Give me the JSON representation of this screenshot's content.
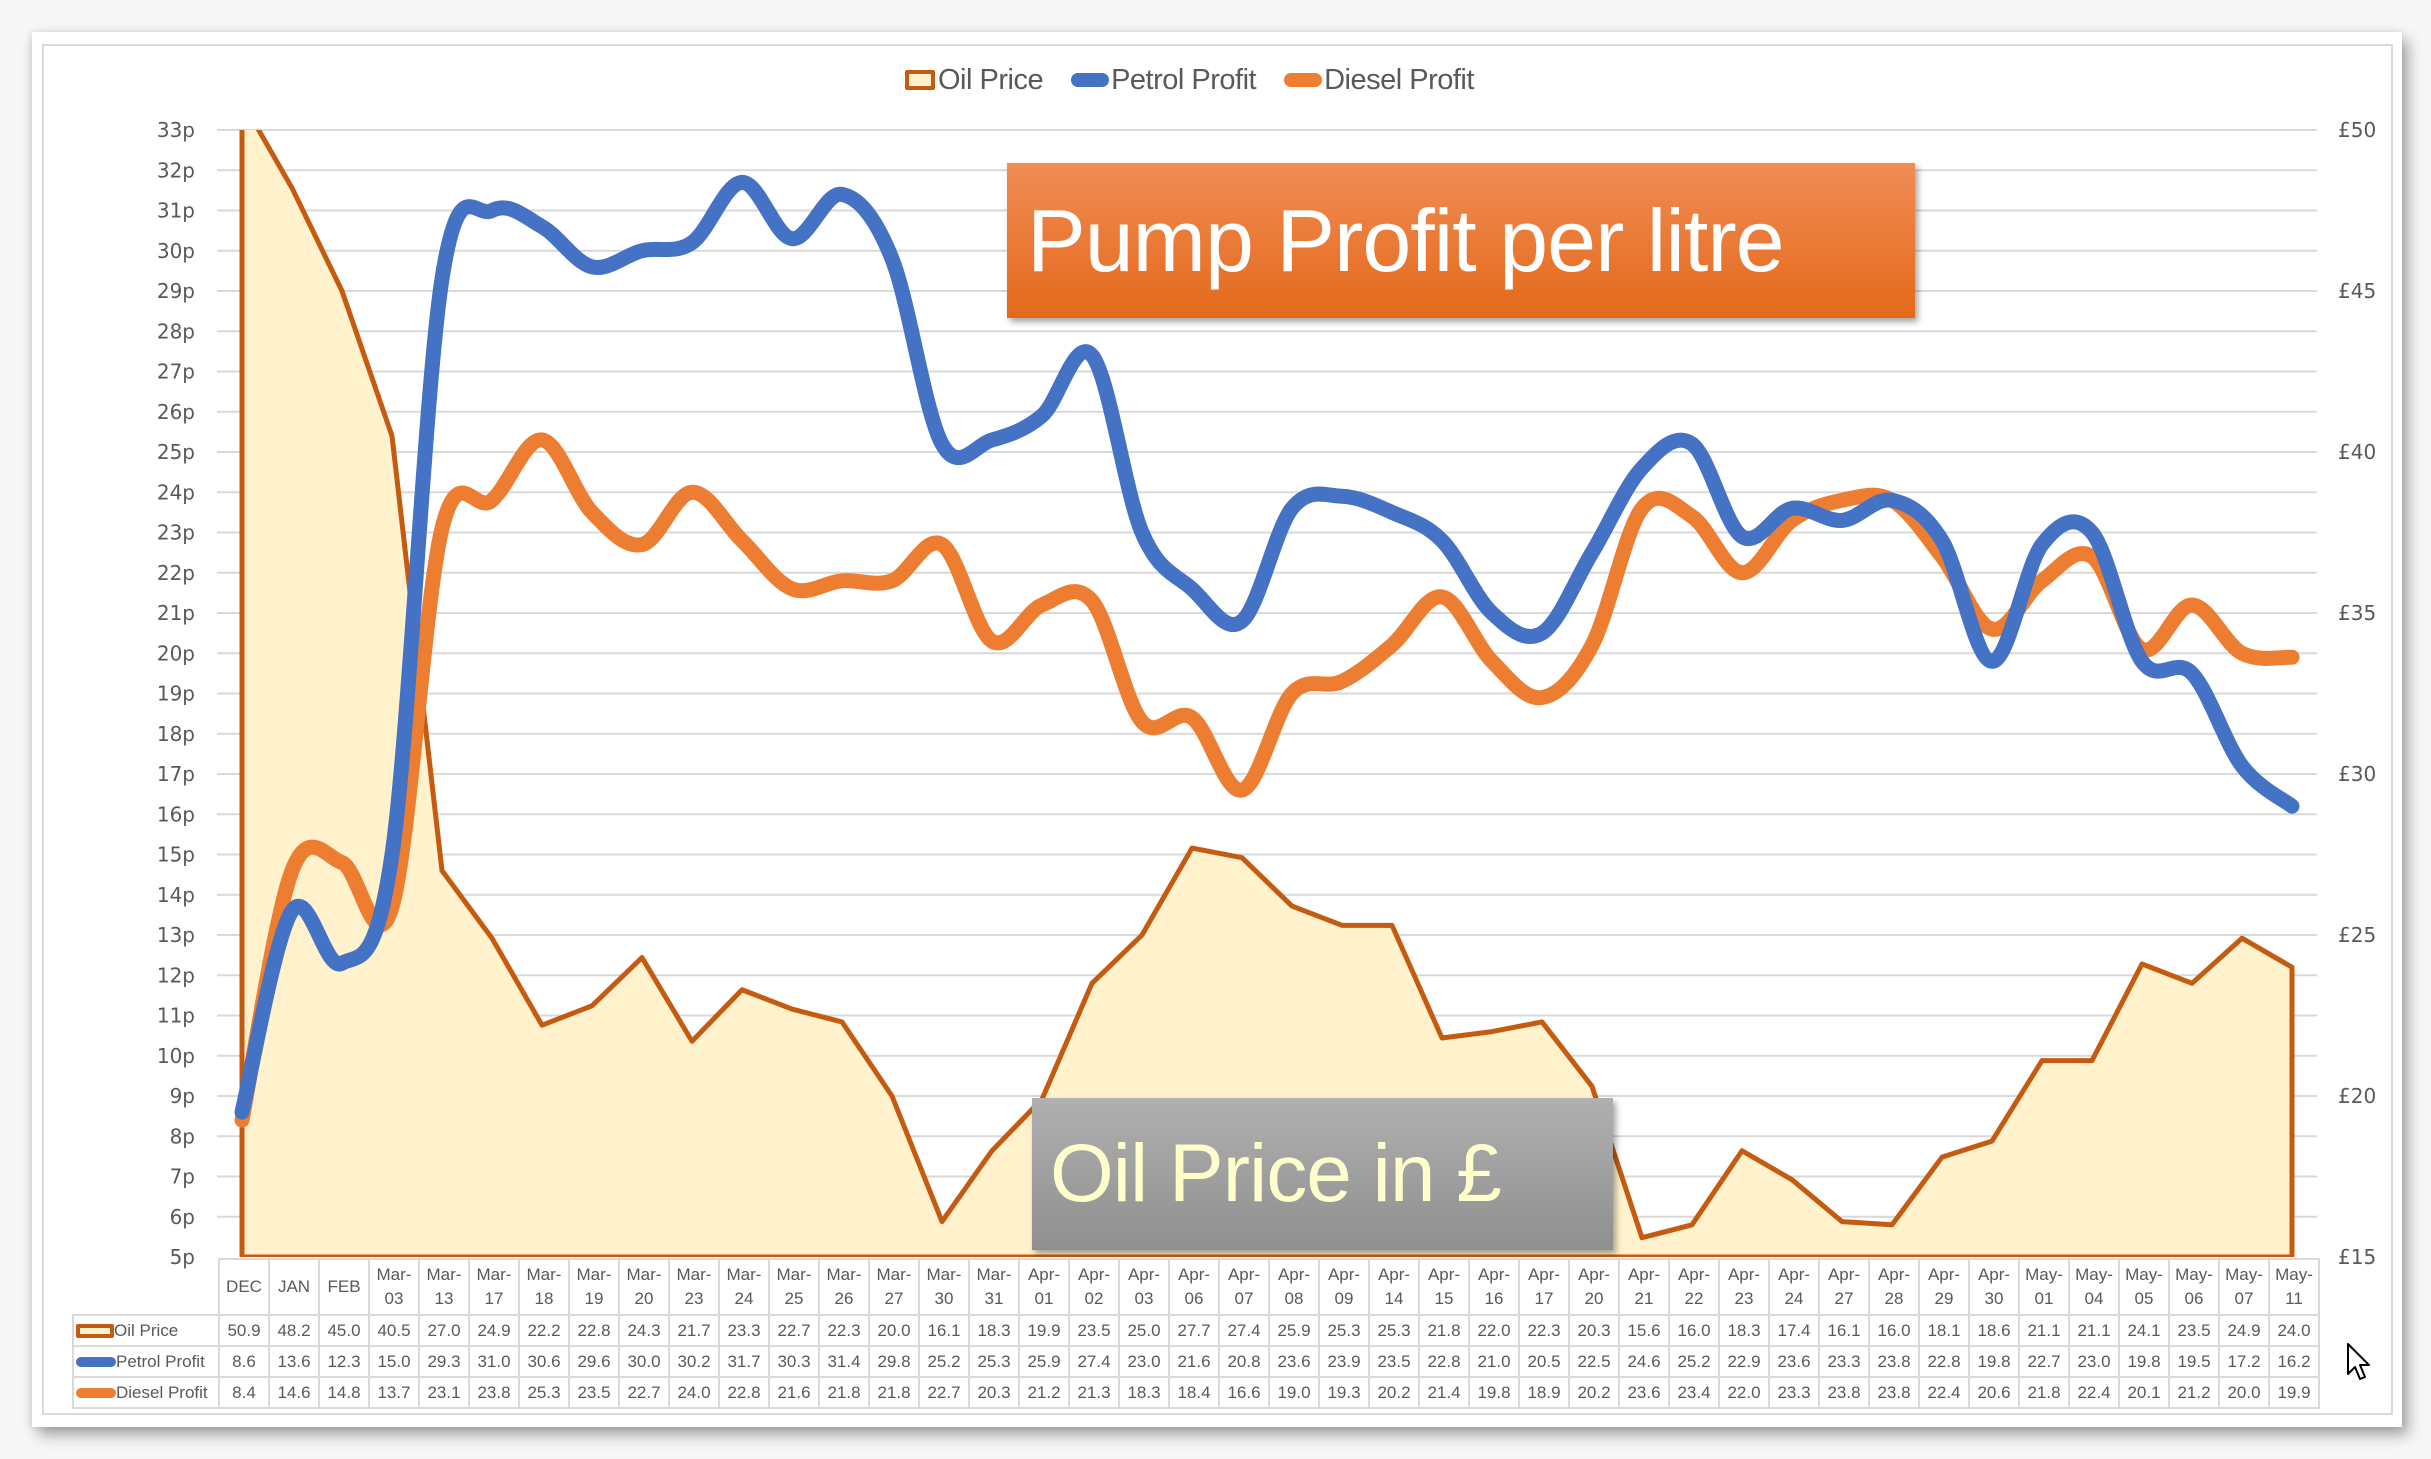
{
  "chart_data": {
    "type": "line",
    "title": "Pump Profit per litre",
    "annotation": "Oil Price in £",
    "categories": [
      "DEC",
      "JAN",
      "FEB",
      "Mar-03",
      "Mar-13",
      "Mar-17",
      "Mar-18",
      "Mar-19",
      "Mar-20",
      "Mar-23",
      "Mar-24",
      "Mar-25",
      "Mar-26",
      "Mar-27",
      "Mar-30",
      "Mar-31",
      "Apr-01",
      "Apr-02",
      "Apr-03",
      "Apr-06",
      "Apr-07",
      "Apr-08",
      "Apr-09",
      "Apr-14",
      "Apr-15",
      "Apr-16",
      "Apr-17",
      "Apr-20",
      "Apr-21",
      "Apr-22",
      "Apr-23",
      "Apr-24",
      "Apr-27",
      "Apr-28",
      "Apr-29",
      "Apr-30",
      "May-01",
      "May-04",
      "May-05",
      "May-06",
      "May-07",
      "May-11"
    ],
    "series": [
      {
        "name": "Oil Price",
        "type": "area",
        "axis": "right",
        "color": "#c55a11",
        "fill": "#fff2cc",
        "values": [
          50.9,
          48.2,
          45.0,
          40.5,
          27.0,
          24.9,
          22.2,
          22.8,
          24.3,
          21.7,
          23.3,
          22.7,
          22.3,
          20.0,
          16.1,
          18.3,
          19.9,
          23.5,
          25.0,
          27.7,
          27.4,
          25.9,
          25.3,
          25.3,
          21.8,
          22.0,
          22.3,
          20.3,
          15.6,
          16.0,
          18.3,
          17.4,
          16.1,
          16.0,
          18.1,
          18.6,
          21.1,
          21.1,
          24.1,
          23.5,
          24.9,
          24.0
        ]
      },
      {
        "name": "Petrol Profit",
        "type": "line",
        "smooth": true,
        "axis": "left",
        "color": "#4472c4",
        "values": [
          8.6,
          13.6,
          12.3,
          15.0,
          29.3,
          31.0,
          30.6,
          29.6,
          30.0,
          30.2,
          31.7,
          30.3,
          31.4,
          29.8,
          25.2,
          25.3,
          25.9,
          27.4,
          23.0,
          21.6,
          20.8,
          23.6,
          23.9,
          23.5,
          22.8,
          21.0,
          20.5,
          22.5,
          24.6,
          25.2,
          22.9,
          23.6,
          23.3,
          23.8,
          22.8,
          19.8,
          22.7,
          23.0,
          19.8,
          19.5,
          17.2,
          16.2
        ]
      },
      {
        "name": "Diesel Profit",
        "type": "line",
        "smooth": true,
        "axis": "left",
        "color": "#ed7d31",
        "values": [
          8.4,
          14.6,
          14.8,
          13.7,
          23.1,
          23.8,
          25.3,
          23.5,
          22.7,
          24.0,
          22.8,
          21.6,
          21.8,
          21.8,
          22.7,
          20.3,
          21.2,
          21.3,
          18.3,
          18.4,
          16.6,
          19.0,
          19.3,
          20.2,
          21.4,
          19.8,
          18.9,
          20.2,
          23.6,
          23.4,
          22.0,
          23.3,
          23.8,
          23.8,
          22.4,
          20.6,
          21.8,
          22.4,
          20.1,
          21.2,
          20.0,
          19.9
        ]
      }
    ],
    "yaxis_left": {
      "min": 5,
      "max": 33,
      "step": 1,
      "suffix": "p",
      "label": ""
    },
    "yaxis_right": {
      "min": 15,
      "max": 50,
      "step": 5,
      "prefix": "£",
      "label": ""
    },
    "legend_position": "top",
    "grid": true,
    "data_table": true
  },
  "legend": {
    "oil": "Oil Price",
    "petrol": "Petrol Profit",
    "diesel": "Diesel Profit"
  },
  "colors": {
    "oil_line": "#c55a11",
    "oil_fill": "#fff2cc",
    "petrol": "#4472c4",
    "diesel": "#ed7d31",
    "title_box": "#e96f22",
    "oil_box": "#a0a0a0",
    "oil_box_text": "#ffffcc"
  },
  "title_box": {
    "text": "Pump Profit per litre"
  },
  "oil_box": {
    "text": "Oil Price in £"
  }
}
